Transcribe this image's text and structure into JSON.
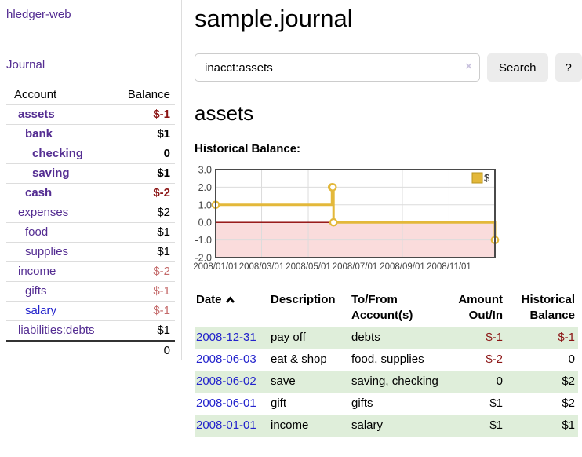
{
  "app": {
    "brand": "hledger-web",
    "nav_journal": "Journal"
  },
  "sidebar": {
    "columns": {
      "account": "Account",
      "balance": "Balance"
    },
    "accounts": [
      {
        "name": "assets",
        "depth": 1,
        "bold": true,
        "balance": "$-1",
        "neg": "strong"
      },
      {
        "name": "bank",
        "depth": 2,
        "bold": true,
        "balance": "$1"
      },
      {
        "name": "checking",
        "depth": 3,
        "bold": true,
        "balance": "0"
      },
      {
        "name": "saving",
        "depth": 3,
        "bold": true,
        "balance": "$1"
      },
      {
        "name": "cash",
        "depth": 2,
        "bold": true,
        "balance": "$-2",
        "neg": "strong"
      },
      {
        "name": "expenses",
        "depth": 1,
        "bold": false,
        "balance": "$2"
      },
      {
        "name": "food",
        "depth": 2,
        "bold": false,
        "balance": "$1"
      },
      {
        "name": "supplies",
        "depth": 2,
        "bold": false,
        "balance": "$1"
      },
      {
        "name": "income",
        "depth": 1,
        "bold": false,
        "balance": "$-2",
        "neg": "soft"
      },
      {
        "name": "gifts",
        "depth": 2,
        "bold": false,
        "balance": "$-1",
        "neg": "soft"
      },
      {
        "name": "salary",
        "depth": 2,
        "bold": false,
        "balance": "$-1",
        "neg": "soft",
        "link": "blue"
      },
      {
        "name": "liabilities:debts",
        "depth": 1,
        "bold": false,
        "balance": "$1"
      }
    ],
    "total": "0"
  },
  "header": {
    "title": "sample.journal"
  },
  "search": {
    "value": "inacct:assets",
    "clear_icon": "×",
    "button": "Search",
    "help_button": "?"
  },
  "account_page": {
    "heading": "assets",
    "chart_label": "Historical Balance:"
  },
  "chart_data": {
    "type": "line",
    "step": true,
    "title": "Historical Balance",
    "legend": "$",
    "series": [
      {
        "name": "$",
        "points": [
          {
            "x": 0,
            "y": 1
          },
          {
            "x": 152,
            "y": 2
          },
          {
            "x": 153,
            "y": 2
          },
          {
            "x": 154,
            "y": 0
          },
          {
            "x": 365,
            "y": -1
          }
        ]
      }
    ],
    "xlim": [
      0,
      365
    ],
    "ylim": [
      -2,
      3
    ],
    "y_ticks": [
      {
        "v": 3,
        "label": "3.0"
      },
      {
        "v": 2,
        "label": "2.0"
      },
      {
        "v": 1,
        "label": "1.0"
      },
      {
        "v": 0,
        "label": "0.0"
      },
      {
        "v": -1,
        "label": "-1.0"
      },
      {
        "v": -2,
        "label": "-2.0"
      }
    ],
    "x_ticks": [
      {
        "pos": 0,
        "label": "2008/01/01"
      },
      {
        "pos": 60,
        "label": "2008/03/01"
      },
      {
        "pos": 121,
        "label": "2008/05/01"
      },
      {
        "pos": 182,
        "label": "2008/07/01"
      },
      {
        "pos": 244,
        "label": "2008/09/01"
      },
      {
        "pos": 305,
        "label": "2008/11/01"
      }
    ],
    "colors": {
      "line": "#e3b83a",
      "legend_square_border": "#b8941f",
      "negative_fill": "#fadcdc",
      "zero_line": "#8b0000",
      "grid": "#dcdcdc",
      "border": "#4a4a4a",
      "axis_text": "#444444"
    }
  },
  "register": {
    "columns": [
      {
        "l1": "Date"
      },
      {
        "l1": "Description"
      },
      {
        "l1": "To/From",
        "l2": "Account(s)"
      },
      {
        "l1": "Amount",
        "l2": "Out/In"
      },
      {
        "l1": "Historical",
        "l2": "Balance"
      }
    ],
    "rows": [
      {
        "date": "2008-12-31",
        "description": "pay off",
        "accounts": "debts",
        "amount": "$-1",
        "amount_neg": true,
        "balance": "$-1",
        "balance_neg": true,
        "stripe": true
      },
      {
        "date": "2008-06-03",
        "description": "eat & shop",
        "accounts": "food, supplies",
        "amount": "$-2",
        "amount_neg": true,
        "balance": "0",
        "balance_neg": false,
        "stripe": false
      },
      {
        "date": "2008-06-02",
        "description": "save",
        "accounts": "saving, checking",
        "amount": "0",
        "amount_neg": false,
        "balance": "$2",
        "balance_neg": false,
        "stripe": true
      },
      {
        "date": "2008-06-01",
        "description": "gift",
        "accounts": "gifts",
        "amount": "$1",
        "amount_neg": false,
        "balance": "$2",
        "balance_neg": false,
        "stripe": false
      },
      {
        "date": "2008-01-01",
        "description": "income",
        "accounts": "salary",
        "amount": "$1",
        "amount_neg": false,
        "balance": "$1",
        "balance_neg": false,
        "stripe": true
      }
    ]
  }
}
